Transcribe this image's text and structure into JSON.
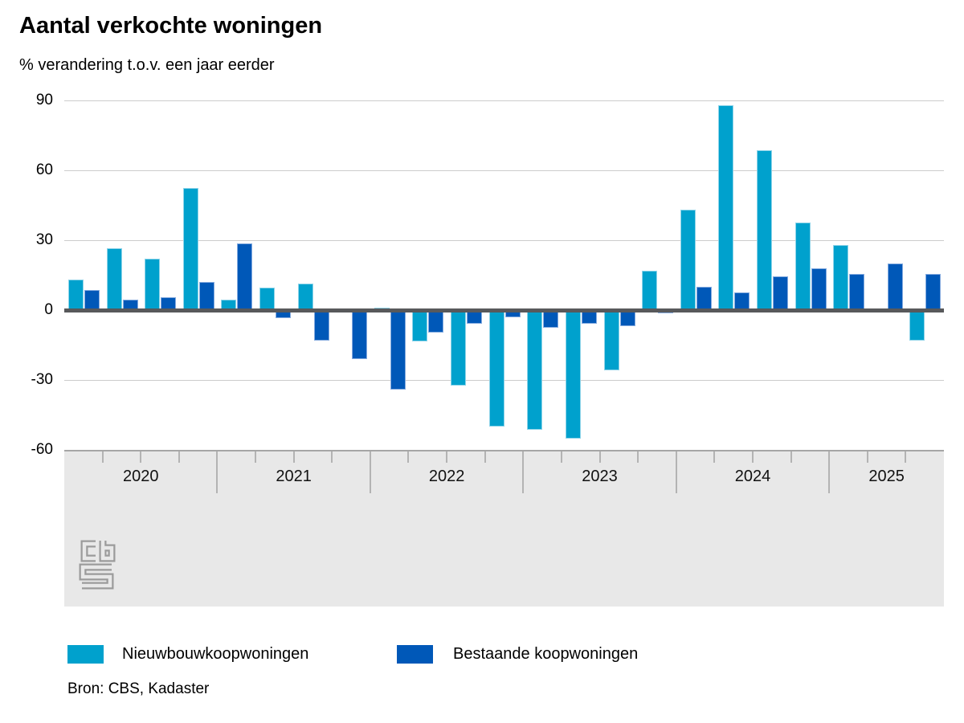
{
  "chart_data": {
    "type": "bar",
    "title": "Aantal verkochte woningen",
    "subtitle": "% verandering t.o.v. een jaar eerder",
    "source": "Bron: CBS, Kadaster",
    "categories": [
      "2020Q1",
      "2020Q2",
      "2020Q3",
      "2020Q4",
      "2021Q1",
      "2021Q2",
      "2021Q3",
      "2021Q4",
      "2022Q1",
      "2022Q2",
      "2022Q3",
      "2022Q4",
      "2023Q1",
      "2023Q2",
      "2023Q3",
      "2023Q4",
      "2024Q1",
      "2024Q2",
      "2024Q3",
      "2024Q4",
      "2025Q1",
      "2025Q2",
      "2025Q3"
    ],
    "x_year_groups": [
      {
        "label": "2020",
        "quarters": 4
      },
      {
        "label": "2021",
        "quarters": 4
      },
      {
        "label": "2022",
        "quarters": 4
      },
      {
        "label": "2023",
        "quarters": 4
      },
      {
        "label": "2024",
        "quarters": 4
      },
      {
        "label": "2025",
        "quarters": 3
      }
    ],
    "series": [
      {
        "name": "Nieuwbouwkoopwoningen",
        "color": "#00a1cd",
        "border_color": "#8fd4e9",
        "values": [
          13,
          26.5,
          22,
          52.5,
          4.5,
          9.5,
          11.5,
          -1,
          1,
          -13.5,
          -32.5,
          -50,
          -51.5,
          -55,
          -26,
          17,
          43,
          88,
          68.5,
          37.5,
          28,
          0,
          -13
        ]
      },
      {
        "name": "Bestaande koopwoningen",
        "color": "#0058b8",
        "border_color": "#85abdf",
        "values": [
          8.5,
          4.5,
          5.5,
          12,
          28.5,
          -3.5,
          -13,
          -21,
          -34,
          -9.5,
          -6,
          -3,
          -7.5,
          -6,
          -7,
          -1.5,
          10,
          7.5,
          14.5,
          18,
          15.5,
          20,
          15.5
        ]
      }
    ],
    "ylim": [
      -60,
      90
    ],
    "yticks": [
      90,
      60,
      30,
      0,
      -30,
      -60
    ],
    "grid": "horizontal-light-gray",
    "legend_position": "bottom",
    "colors": {
      "gridline": "#cccccc",
      "zero_line": "#58595b",
      "axis_band": "#e8e8e8",
      "axis_line": "#a6a6a6",
      "logo_gray": "#9b9b9b"
    }
  }
}
